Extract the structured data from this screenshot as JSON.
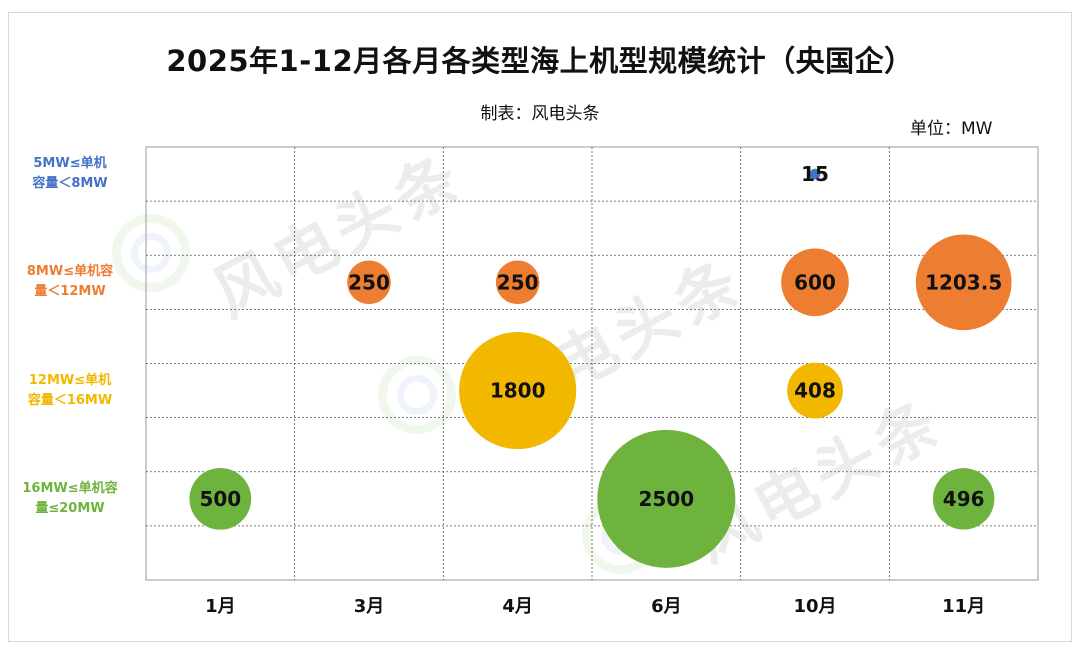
{
  "title": "2025年1-12月各月各类型海上机型规模统计（央国企）",
  "subtitle": "制表：风电头条",
  "unit": "单位：MW",
  "watermark": "风电头条",
  "chart_data": {
    "type": "bubble",
    "x_categories": [
      "1月",
      "3月",
      "4月",
      "6月",
      "10月",
      "11月"
    ],
    "y_categories": [
      {
        "label": "5MW≤单机容量＜8MW",
        "lines": [
          "5MW≤单机",
          "容量＜8MW"
        ],
        "color": "#4472C4"
      },
      {
        "label": "8MW≤单机容量＜12MW",
        "lines": [
          "8MW≤单机容",
          "量＜12MW"
        ],
        "color": "#ED7D31"
      },
      {
        "label": "12MW≤单机容量＜16MW",
        "lines": [
          "12MW≤单机",
          "容量＜16MW"
        ],
        "color": "#F2B800"
      },
      {
        "label": "16MW≤单机容量≤20MW",
        "lines": [
          "16MW≤单机容",
          "量≤20MW"
        ],
        "color": "#6FB33F"
      }
    ],
    "points": [
      {
        "x": "10月",
        "y": "5MW≤单机容量＜8MW",
        "value": 15,
        "label": "15"
      },
      {
        "x": "3月",
        "y": "8MW≤单机容量＜12MW",
        "value": 250,
        "label": "250"
      },
      {
        "x": "4月",
        "y": "8MW≤单机容量＜12MW",
        "value": 250,
        "label": "250"
      },
      {
        "x": "10月",
        "y": "8MW≤单机容量＜12MW",
        "value": 600,
        "label": "600"
      },
      {
        "x": "11月",
        "y": "8MW≤单机容量＜12MW",
        "value": 1203.5,
        "label": "1203.5"
      },
      {
        "x": "4月",
        "y": "12MW≤单机容量＜16MW",
        "value": 1800,
        "label": "1800"
      },
      {
        "x": "10月",
        "y": "12MW≤单机容量＜16MW",
        "value": 408,
        "label": "408"
      },
      {
        "x": "1月",
        "y": "16MW≤单机容量≤20MW",
        "value": 500,
        "label": "500"
      },
      {
        "x": "6月",
        "y": "16MW≤单机容量≤20MW",
        "value": 2500,
        "label": "2500"
      },
      {
        "x": "11月",
        "y": "16MW≤单机容量≤20MW",
        "value": 496,
        "label": "496"
      }
    ],
    "grid": true,
    "legend": "none"
  }
}
